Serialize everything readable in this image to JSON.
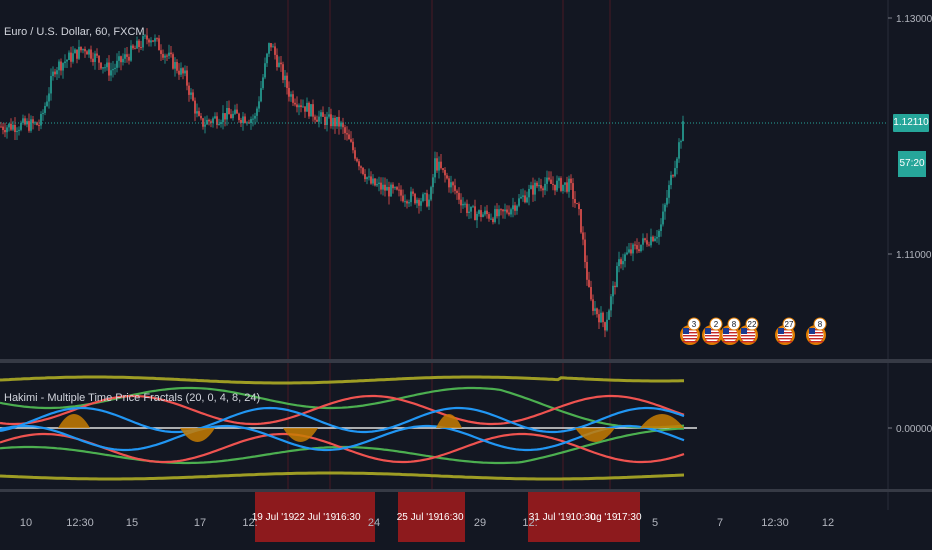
{
  "header": {
    "symbol_title": "Euro / U.S. Dollar, 60, FXCM",
    "indicator_title": "Hakimi - Multiple Time Price Fractals  (20, 0, 4, 8, 24)"
  },
  "price_axis": {
    "ticks": [
      "1.13000",
      "1.12110",
      "1.11000"
    ],
    "current_price": "1.12110",
    "countdown": "57:20",
    "accent": "#26a69a"
  },
  "indicator_axis": {
    "ticks": [
      "0.00000"
    ]
  },
  "time_axis": {
    "labels": [
      "10",
      "12:30",
      "15",
      "17",
      "12:",
      "24",
      "29",
      "12:",
      "5",
      "7",
      "12:30",
      "12"
    ],
    "highlights": [
      "19 Jul '19",
      "22 Jul '19",
      "16:30",
      "25 Jul '19",
      "16:30",
      "31 Jul '19",
      "10:30",
      "ug '19",
      "17:30"
    ],
    "highlight_color": "#b71c1c"
  },
  "events": [
    {
      "icon": "us-flag-icon",
      "count": "3"
    },
    {
      "icon": "us-flag-icon",
      "count": "2"
    },
    {
      "icon": "us-flag-icon",
      "count": "8"
    },
    {
      "icon": "us-flag-icon",
      "count": "22"
    },
    {
      "icon": "us-flag-icon",
      "count": "27"
    },
    {
      "icon": "us-flag-icon",
      "count": "8"
    }
  ],
  "colors": {
    "background": "#131722",
    "up_candle": "#26a69a",
    "down_candle": "#ef5350",
    "separator": "#4a1a24",
    "olive": "#9e9d24",
    "red_line": "#ef5350",
    "green_line": "#4caf50",
    "blue_line": "#2196f3",
    "fill": "#c77c02"
  },
  "chart_data": [
    {
      "type": "candlestick",
      "title": "Euro / U.S. Dollar, 60, FXCM",
      "y_ticks": [
        1.13,
        1.1211,
        1.11
      ],
      "last_price": 1.1211,
      "close_path": [
        {
          "x": 0,
          "y": 1.1208
        },
        {
          "x": 40,
          "y": 1.121
        },
        {
          "x": 55,
          "y": 1.1258
        },
        {
          "x": 85,
          "y": 1.1275
        },
        {
          "x": 110,
          "y": 1.1255
        },
        {
          "x": 150,
          "y": 1.1285
        },
        {
          "x": 185,
          "y": 1.125
        },
        {
          "x": 200,
          "y": 1.121
        },
        {
          "x": 225,
          "y": 1.1218
        },
        {
          "x": 255,
          "y": 1.1215
        },
        {
          "x": 270,
          "y": 1.128
        },
        {
          "x": 290,
          "y": 1.1235
        },
        {
          "x": 320,
          "y": 1.1215
        },
        {
          "x": 340,
          "y": 1.121
        },
        {
          "x": 370,
          "y": 1.116
        },
        {
          "x": 400,
          "y": 1.115
        },
        {
          "x": 430,
          "y": 1.1145
        },
        {
          "x": 435,
          "y": 1.1178
        },
        {
          "x": 470,
          "y": 1.1135
        },
        {
          "x": 500,
          "y": 1.1132
        },
        {
          "x": 540,
          "y": 1.116
        },
        {
          "x": 570,
          "y": 1.1158
        },
        {
          "x": 580,
          "y": 1.113
        },
        {
          "x": 590,
          "y": 1.106
        },
        {
          "x": 605,
          "y": 1.104
        },
        {
          "x": 620,
          "y": 1.1095
        },
        {
          "x": 660,
          "y": 1.112
        },
        {
          "x": 670,
          "y": 1.116
        },
        {
          "x": 684,
          "y": 1.1211
        }
      ]
    },
    {
      "type": "line",
      "title": "Hakimi - Multiple Time Price Fractals  (20, 0, 4, 8, 24)",
      "y_ticks": [
        0
      ],
      "series": [
        {
          "color": "olive"
        },
        {
          "color": "red"
        },
        {
          "color": "green"
        },
        {
          "color": "blue"
        }
      ]
    }
  ]
}
